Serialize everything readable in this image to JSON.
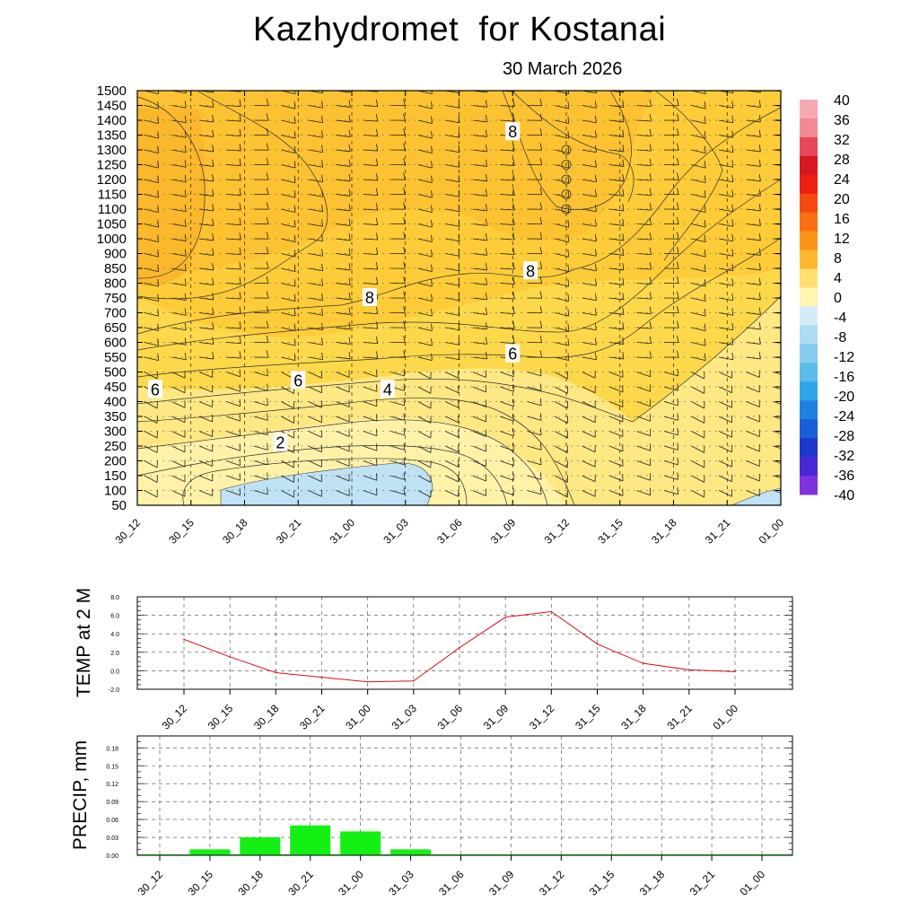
{
  "title": "Kazhydromet  for Kostanai",
  "subtitle": "30 March 2026",
  "time_labels": [
    "30_12",
    "30_15",
    "30_18",
    "30_21",
    "31_00",
    "31_03",
    "31_06",
    "31_09",
    "31_12",
    "31_15",
    "31_18",
    "31_21",
    "01_00"
  ],
  "chart_data": [
    {
      "type": "heatmap",
      "name": "cross-section",
      "description_levels_label": "height levels",
      "y_levels": [
        50,
        100,
        150,
        200,
        250,
        300,
        350,
        400,
        450,
        500,
        550,
        600,
        650,
        700,
        750,
        800,
        850,
        900,
        1000,
        1050,
        1100,
        1150,
        1200,
        1250,
        1300,
        1350,
        1400,
        1450,
        1500
      ],
      "x_categories": [
        "30_12",
        "30_15",
        "30_18",
        "30_21",
        "31_00",
        "31_03",
        "31_06",
        "31_09",
        "31_12",
        "31_15",
        "31_18",
        "31_21",
        "01_00"
      ],
      "contour_labels": [
        {
          "text": "8",
          "x": "31_09",
          "y": 1360
        },
        {
          "text": "8",
          "x": "31_10",
          "y": 840
        },
        {
          "text": "8",
          "x": "31_01",
          "y": 750
        },
        {
          "text": "6",
          "x": "31_09",
          "y": 560
        },
        {
          "text": "6",
          "x": "30_21",
          "y": 470
        },
        {
          "text": "6",
          "x": "30_13",
          "y": 440
        },
        {
          "text": "4",
          "x": "31_02",
          "y": 440
        },
        {
          "text": "2",
          "x": "30_20",
          "y": 260
        }
      ],
      "colorbar": {
        "labels": [
          "40",
          "36",
          "32",
          "28",
          "24",
          "20",
          "16",
          "12",
          "8",
          "4",
          "0",
          "-4",
          "-8",
          "-12",
          "-16",
          "-20",
          "-24",
          "-28",
          "-32",
          "-36",
          "-40"
        ],
        "colors": [
          "#f8a8b0",
          "#f28a96",
          "#e8485a",
          "#d81820",
          "#ee1e12",
          "#f44a10",
          "#f87014",
          "#fa9418",
          "#fdb830",
          "#fee070",
          "#fff4b0",
          "#d4ecf8",
          "#aedcf2",
          "#86ccee",
          "#5cbcea",
          "#2ea6e8",
          "#1e82e0",
          "#1a5ed8",
          "#1e38d0",
          "#4a28d8",
          "#8032e0"
        ]
      }
    },
    {
      "type": "line",
      "name": "temperature",
      "ylabel": "TEMP at 2 M",
      "categories": [
        "30_12",
        "30_15",
        "30_18",
        "30_21",
        "31_00",
        "31_03",
        "31_06",
        "31_09",
        "31_12",
        "31_15",
        "31_18",
        "31_21",
        "01_00"
      ],
      "values": [
        3.4,
        1.5,
        -0.2,
        -0.7,
        -1.2,
        -1.1,
        2.5,
        5.8,
        6.4,
        2.9,
        0.8,
        0.1,
        -0.1
      ],
      "ylim": [
        -2.0,
        8.0
      ],
      "yticks": [
        "8.0",
        "6.0",
        "4.0",
        "2.0",
        "0.0",
        "-2.0"
      ],
      "color": "#e01010"
    },
    {
      "type": "bar",
      "name": "precipitation",
      "ylabel": "PRECIP, mm",
      "categories": [
        "30_12",
        "30_15",
        "30_18",
        "30_21",
        "31_00",
        "31_03",
        "31_06",
        "31_09",
        "31_12",
        "31_15",
        "31_18",
        "31_21",
        "01_00"
      ],
      "values": [
        0,
        0.01,
        0.03,
        0.05,
        0.04,
        0.01,
        0,
        0,
        0,
        0,
        0,
        0,
        0
      ],
      "ylim": [
        0,
        0.2
      ],
      "yticks": [
        "0.18",
        "0.15",
        "0.12",
        "0.09",
        "0.06",
        "0.03",
        "0.00"
      ],
      "color": "#14f014"
    }
  ]
}
